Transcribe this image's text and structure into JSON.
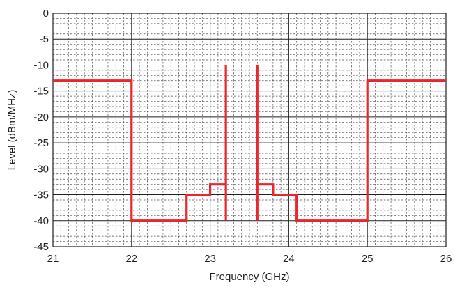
{
  "chart_data": {
    "type": "line",
    "xlabel": "Frequency (GHz)",
    "ylabel": "Level (dBm/MHz)",
    "xlim": [
      21,
      26
    ],
    "ylim": [
      -45,
      0
    ],
    "x_ticks": [
      "21",
      "22",
      "23",
      "24",
      "25",
      "26"
    ],
    "y_ticks": [
      "0",
      "-5",
      "-10",
      "-15",
      "-20",
      "-25",
      "-30",
      "-35",
      "-40",
      "-45"
    ],
    "grid": "major solid, minor dashed",
    "series": [
      {
        "color": "#e8262b",
        "points": [
          [
            21,
            -13
          ],
          [
            22,
            -13
          ],
          [
            22,
            -40
          ],
          [
            22.7,
            -40
          ],
          [
            22.7,
            -35
          ],
          [
            23,
            -35
          ],
          [
            23,
            -33
          ],
          [
            23.2,
            -33
          ],
          [
            23.2,
            -10
          ],
          [
            23.2,
            -40
          ]
        ]
      },
      {
        "color": "#e8262b",
        "points": [
          [
            23.6,
            -40
          ],
          [
            23.6,
            -10
          ],
          [
            23.6,
            -33
          ],
          [
            23.8,
            -33
          ],
          [
            23.8,
            -35
          ],
          [
            24.1,
            -35
          ],
          [
            24.1,
            -40
          ],
          [
            25,
            -40
          ],
          [
            25,
            -13
          ],
          [
            26,
            -13
          ]
        ]
      }
    ]
  }
}
